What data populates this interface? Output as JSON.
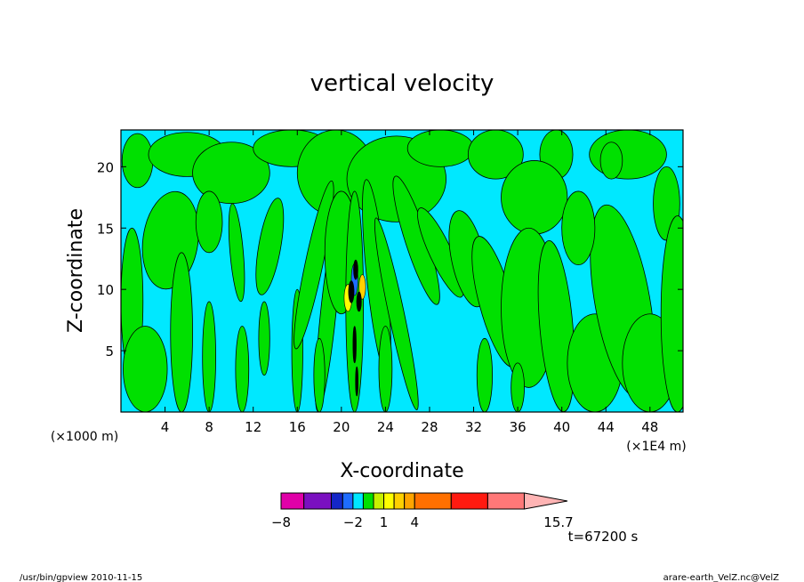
{
  "chart_data": {
    "type": "heatmap",
    "title": "vertical velocity",
    "xlabel": "X-coordinate",
    "ylabel": "Z-coordinate",
    "x_unit_left": "(×1000 m)",
    "x_unit_right": "(×1E4 m)",
    "xlim": [
      0,
      51
    ],
    "ylim": [
      0,
      23
    ],
    "x_ticks": [
      4,
      8,
      12,
      16,
      20,
      24,
      28,
      32,
      36,
      40,
      44,
      48
    ],
    "y_ticks": [
      5,
      10,
      15,
      20
    ],
    "colorbar": {
      "bounds": [
        -8,
        -5.5,
        -3,
        -2.5,
        -2,
        -1,
        0,
        1,
        2,
        3,
        4,
        7.5,
        11,
        14.5,
        15.7
      ],
      "colors": [
        "#e000a8",
        "#7a10c0",
        "#1426c8",
        "#1e6cff",
        "#00e8ff",
        "#00e000",
        "#c8f000",
        "#ffff00",
        "#ffd000",
        "#ffa400",
        "#ff7000",
        "#ff1a10",
        "#ff7878",
        "#ffb4b4"
      ],
      "labels": [
        {
          "text": "−8",
          "value": -8
        },
        {
          "text": "−2",
          "value": -2
        },
        {
          "text": "1",
          "value": 1
        },
        {
          "text": "4",
          "value": 4
        },
        {
          "text": "15.7",
          "value": 15.7
        }
      ]
    },
    "regions": {
      "background": "#00e8ff",
      "positive_fill": "#00e000",
      "core_colors": [
        "#ffff00",
        "#ffd000",
        "#1e6cff",
        "#000000"
      ]
    }
  },
  "time_label": "t=67200 s",
  "footer": {
    "left": "/usr/bin/gpview  2010-11-15",
    "right": "arare-earth_VelZ.nc@VelZ"
  }
}
